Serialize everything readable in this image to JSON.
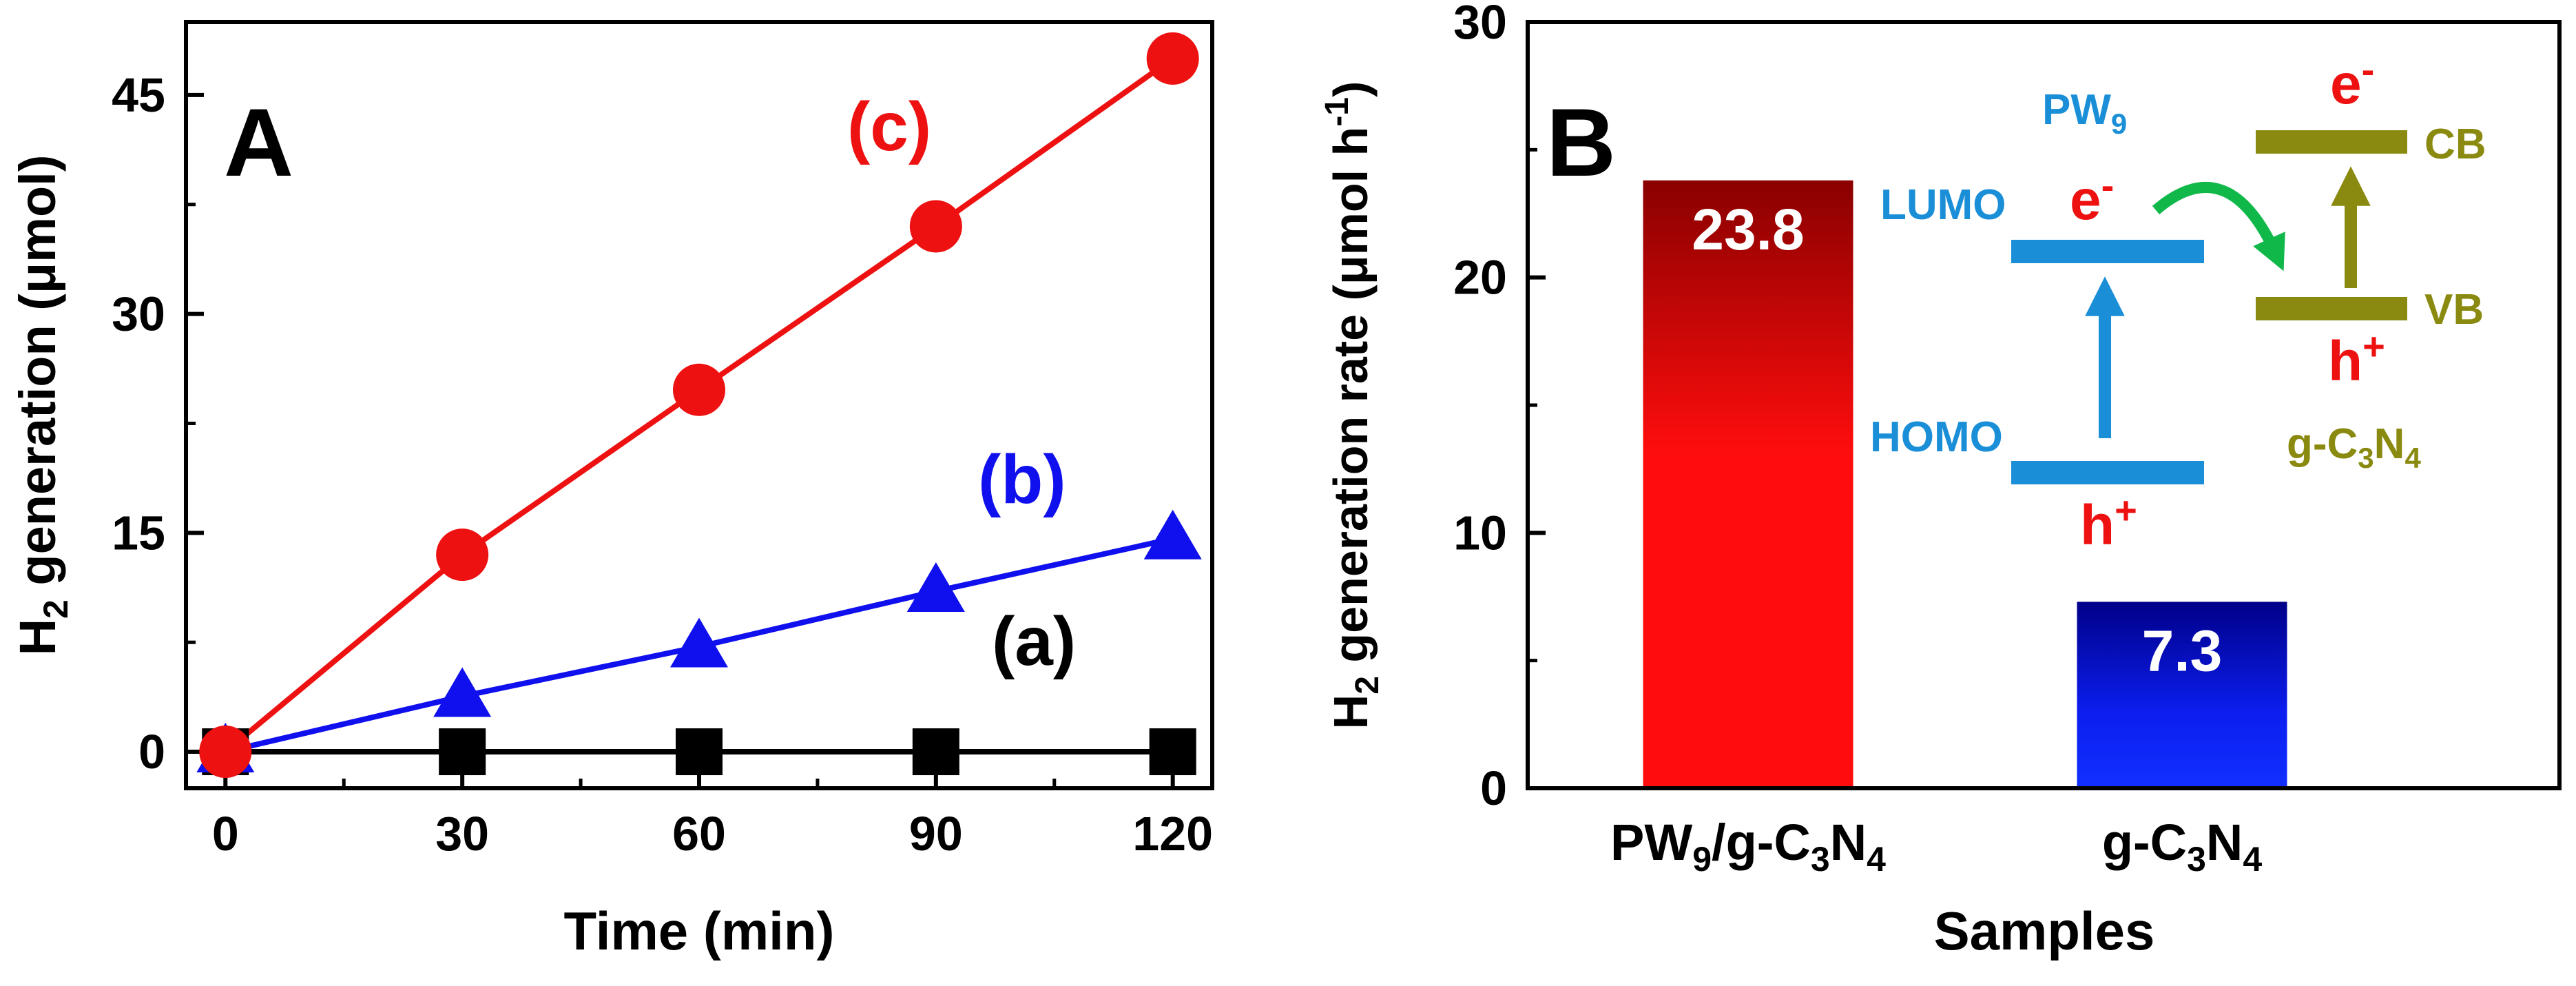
{
  "colors": {
    "a": "#000000",
    "b": "#1010ee",
    "c": "#ee1111",
    "pw9": "#1a8fd8",
    "gcn": "#8a8a10",
    "electron": "#ee1111",
    "transfer_arrow": "#10b84a"
  },
  "chart_data": [
    {
      "type": "line",
      "panel_label": "A",
      "xlabel": "Time (min)",
      "ylabel_main": "H",
      "ylabel_sub": "2",
      "ylabel_rest": " generation (μmol)",
      "xlim": [
        -5,
        125
      ],
      "ylim": [
        -2.5,
        50
      ],
      "x": [
        0,
        30,
        60,
        90,
        120
      ],
      "x_tick_labels": [
        "0",
        "30",
        "60",
        "90",
        "120"
      ],
      "y_ticks": [
        0,
        15,
        30,
        45
      ],
      "y_tick_labels": [
        "0",
        "15",
        "30",
        "45"
      ],
      "series": [
        {
          "name": "(a)",
          "marker": "square",
          "values": [
            0,
            0,
            0,
            0,
            0
          ]
        },
        {
          "name": "(b)",
          "marker": "triangle",
          "values": [
            0,
            3.8,
            7.2,
            11.0,
            14.6
          ]
        },
        {
          "name": "(c)",
          "marker": "circle",
          "values": [
            0,
            13.5,
            24.8,
            36.0,
            47.5
          ]
        }
      ],
      "legend_placement": "inline labels near each series",
      "grid": false
    },
    {
      "type": "bar",
      "panel_label": "B",
      "xlabel": "Samples",
      "ylabel_main": "H",
      "ylabel_sub": "2",
      "ylabel_rest": " generation rate (μmol h",
      "ylabel_sup": "-1",
      "ylabel_close": ")",
      "ylim": [
        0,
        30
      ],
      "y_ticks": [
        0,
        10,
        20,
        30
      ],
      "y_tick_labels": [
        "0",
        "10",
        "20",
        "30"
      ],
      "categories": [
        {
          "p1": "PW",
          "s1": "9",
          "p2": "/g-C",
          "s2": "3",
          "p3": "N",
          "s3": "4"
        },
        {
          "p1": "g-C",
          "s1": "3",
          "p2": "N",
          "s2": "4",
          "p3": "",
          "s3": ""
        }
      ],
      "values": [
        23.8,
        7.3
      ],
      "value_labels": [
        "23.8",
        "7.3"
      ],
      "grid": false
    }
  ],
  "scheme": {
    "pw9_main": "PW",
    "pw9_sub": "9",
    "lumo": "LUMO",
    "homo": "HOMO",
    "cb": "CB",
    "vb": "VB",
    "gcn_p1": "g-C",
    "gcn_s1": "3",
    "gcn_p2": "N",
    "gcn_s2": "4",
    "electron_main": "e",
    "electron_sup": "-",
    "hole_main": "h",
    "hole_sup": "+"
  }
}
